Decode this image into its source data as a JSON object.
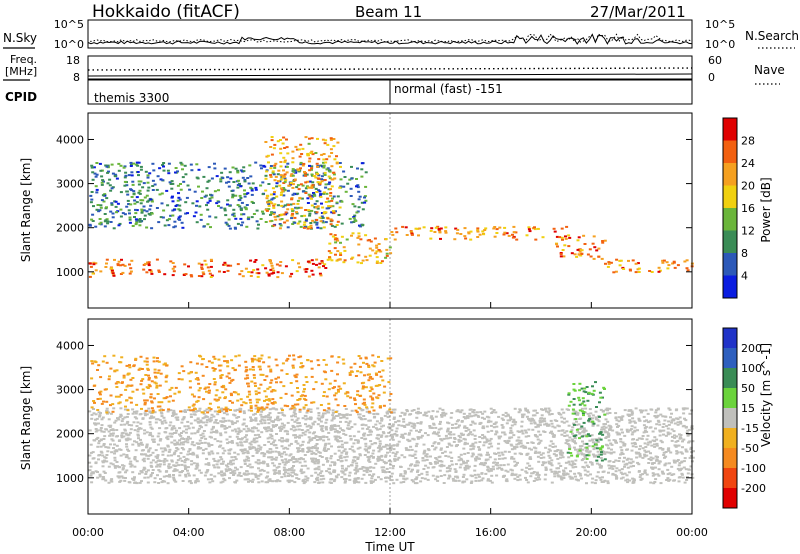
{
  "header": {
    "station": "Hokkaido (fitACF)",
    "beam": "Beam 11",
    "date": "27/Mar/2011"
  },
  "noise_panel": {
    "left_label": "N.Sky",
    "right_label": "N.Search",
    "left_ticks": [
      "10^5",
      "10^0"
    ],
    "right_ticks": [
      "10^5",
      "10^0"
    ]
  },
  "freq_panel": {
    "left_label_1": "Freq.",
    "left_label_2": "[MHz]",
    "right_label": "Nave",
    "left_ticks": [
      "18",
      "8"
    ],
    "right_ticks": [
      "60",
      "0"
    ]
  },
  "cpid_panel": {
    "label": "CPID",
    "program_1": "themis 3300",
    "program_2": "normal (fast) -151"
  },
  "time_axis": {
    "label": "Time UT",
    "ticks": [
      "00:00",
      "04:00",
      "08:00",
      "12:00",
      "16:00",
      "20:00",
      "00:00"
    ]
  },
  "range_axis": {
    "label": "Slant Range [km]",
    "ticks": [
      "1000",
      "2000",
      "3000",
      "4000"
    ]
  },
  "power_colorbar": {
    "label": "Power [dB]",
    "ticks": [
      "4",
      "8",
      "12",
      "16",
      "20",
      "24",
      "28"
    ],
    "colors": [
      "#0a1de0",
      "#2c59b8",
      "#3a8c56",
      "#6ab53a",
      "#f0d010",
      "#f5a020",
      "#f26010",
      "#e00000"
    ]
  },
  "velocity_colorbar": {
    "label": "Velocity [m s^-1]",
    "ticks": [
      "200",
      "100",
      "50",
      "15",
      "-15",
      "-50",
      "-100",
      "-200"
    ],
    "colors": [
      "#2033c8",
      "#2e5fbe",
      "#3a8c56",
      "#6bd33c",
      "#c0c0bc",
      "#f0b020",
      "#f58a20",
      "#f04510",
      "#e00000"
    ]
  },
  "chart_data": {
    "type": "heatmap",
    "title": "Hokkaido (fitACF) Beam 11 27/Mar/2011",
    "xlabel": "Time UT",
    "ylabel": "Slant Range [km]",
    "xlim": [
      0,
      24
    ],
    "ylim": [
      180,
      4600
    ],
    "x_unit": "hours UT",
    "panels": [
      {
        "quantity": "Power [dB]",
        "colorbar_range": [
          0,
          30
        ],
        "features": [
          {
            "name": "near-range band",
            "time_hr": [
              0,
              9.5
            ],
            "range_km": [
              900,
              1300
            ],
            "power_db": 28
          },
          {
            "name": "rising band",
            "time_hr": [
              9.5,
              12
            ],
            "range_km": [
              1200,
              1900
            ],
            "power_db": 24
          },
          {
            "name": "far band",
            "time_hr": [
              12,
              19
            ],
            "range_km": [
              1750,
              2050
            ],
            "power_db": 26
          },
          {
            "name": "descending band",
            "time_hr": [
              18.5,
              20.5
            ],
            "range_km": [
              1300,
              1850
            ],
            "power_db": 26
          },
          {
            "name": "late band",
            "time_hr": [
              20.5,
              24
            ],
            "range_km": [
              1000,
              1300
            ],
            "power_db": 25
          },
          {
            "name": "upper scatter",
            "time_hr": [
              0,
              11
            ],
            "range_km": [
              2000,
              3500
            ],
            "power_db": 12
          },
          {
            "name": "enhancement",
            "time_hr": [
              7,
              10
            ],
            "range_km": [
              2000,
              4100
            ],
            "power_db": 24
          }
        ]
      },
      {
        "quantity": "Velocity [m s^-1]",
        "colorbar_range": [
          -200,
          200
        ],
        "features": [
          {
            "name": "ground scatter band",
            "time_hr": [
              0,
              24
            ],
            "range_km": [
              900,
              2600
            ],
            "velocity": 0
          },
          {
            "name": "positive velocity streak",
            "time_hr": [
              19,
              20.5
            ],
            "range_km": [
              1400,
              3200
            ],
            "velocity": 50
          },
          {
            "name": "negative velocity patches",
            "time_hr": [
              0,
              12
            ],
            "range_km": [
              2500,
              3800
            ],
            "velocity": -50
          }
        ]
      }
    ],
    "cpid_change_time_hr": 12
  }
}
